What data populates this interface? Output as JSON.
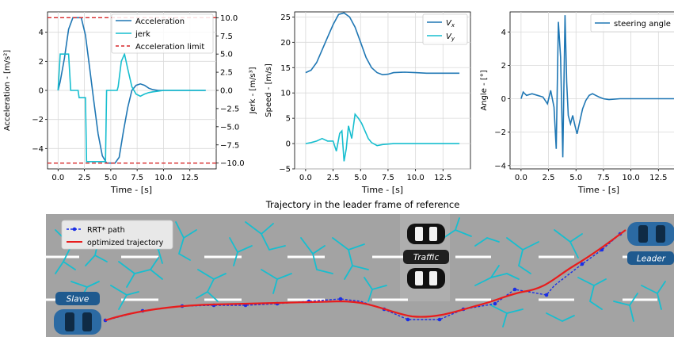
{
  "chart_data": [
    {
      "type": "line",
      "xlabel": "Time - [s]",
      "ylabel": "Acceleration - [m/s²]",
      "ylabel_right": "Jerk - [m/s³]",
      "xlim": [
        -1,
        15
      ],
      "ylim": [
        -5.4,
        5.4
      ],
      "ylim_right": [
        -10.8,
        10.8
      ],
      "xticks": [
        0,
        2.5,
        5,
        7.5,
        10,
        12.5
      ],
      "xtick_labels": [
        "0.0",
        "2.5",
        "5.0",
        "7.5",
        "10.0",
        "12.5"
      ],
      "yticks": [
        -4,
        -2,
        0,
        2,
        4
      ],
      "ytick_labels": [
        "−4",
        "−2",
        "0",
        "2",
        "4"
      ],
      "yticks_right": [
        -10,
        -7.5,
        -5,
        -2.5,
        0,
        2.5,
        5,
        7.5,
        10
      ],
      "ytick_labels_right": [
        "−10.0",
        "−7.5",
        "−5.0",
        "−2.5",
        "0.0",
        "2.5",
        "5.0",
        "7.5",
        "10.0"
      ],
      "grid": true,
      "legend_position": "top-right",
      "series": [
        {
          "name": "Acceleration",
          "axis": "left",
          "color": "#1f77b4",
          "x": [
            0,
            0.2,
            0.6,
            1.0,
            1.4,
            1.8,
            2.2,
            2.6,
            3.0,
            3.4,
            3.8,
            4.2,
            4.6,
            5.0,
            5.4,
            5.8,
            6.2,
            6.6,
            7.0,
            7.4,
            7.8,
            8.2,
            8.6,
            9.0,
            9.5,
            10.0,
            11.0,
            12.0,
            13.0,
            14.0
          ],
          "y": [
            0,
            0.6,
            2.2,
            4.2,
            5.0,
            5.0,
            5.0,
            3.8,
            1.5,
            -0.8,
            -3.0,
            -4.5,
            -5.0,
            -5.0,
            -5.0,
            -4.6,
            -2.8,
            -1.2,
            0.0,
            0.35,
            0.45,
            0.35,
            0.15,
            0.05,
            0.0,
            0.0,
            0.0,
            0.0,
            0.0,
            0.0
          ]
        },
        {
          "name": "jerk",
          "axis": "right",
          "color": "#17becf",
          "x": [
            0,
            0.2,
            0.35,
            1.0,
            1.2,
            1.9,
            2.0,
            2.6,
            2.7,
            4.5,
            4.6,
            5.6,
            5.7,
            6.0,
            6.3,
            6.6,
            7.0,
            7.4,
            7.8,
            8.2,
            8.6,
            9.0,
            9.5,
            10.0,
            11.0,
            12.0,
            13.0,
            14.0
          ],
          "y": [
            0,
            5.0,
            5.0,
            5.0,
            0.0,
            0.0,
            -1.0,
            -1.0,
            -9.8,
            -9.8,
            0.0,
            0.0,
            0.5,
            4.0,
            5.0,
            3.0,
            0.5,
            -0.5,
            -0.8,
            -0.5,
            -0.3,
            -0.2,
            -0.1,
            0.0,
            0.0,
            0.0,
            0.0,
            0.0
          ]
        },
        {
          "name": "Acceleration limit",
          "axis": "left",
          "color": "#d62728",
          "style": "dashed",
          "x": [
            -1,
            15
          ],
          "y": [
            5.0,
            5.0
          ]
        },
        {
          "name": "",
          "axis": "left",
          "color": "#d62728",
          "style": "dashed",
          "x": [
            -1,
            15
          ],
          "y": [
            -5.0,
            -5.0
          ]
        }
      ]
    },
    {
      "type": "line",
      "xlabel": "Time - [s]",
      "ylabel": "Speed - [m/s]",
      "xlim": [
        -1,
        15
      ],
      "ylim": [
        -5,
        26
      ],
      "xticks": [
        0,
        2.5,
        5,
        7.5,
        10,
        12.5
      ],
      "xtick_labels": [
        "0.0",
        "2.5",
        "5.0",
        "7.5",
        "10.0",
        "12.5"
      ],
      "yticks": [
        -5,
        0,
        5,
        10,
        15,
        20,
        25
      ],
      "ytick_labels": [
        "−5",
        "0",
        "5",
        "10",
        "15",
        "20",
        "25"
      ],
      "grid": true,
      "legend_position": "top-right",
      "series": [
        {
          "name": "Vx",
          "color": "#1f77b4",
          "x": [
            0,
            0.5,
            1.0,
            1.5,
            2.0,
            2.5,
            3.0,
            3.5,
            4.0,
            4.5,
            5.0,
            5.5,
            6.0,
            6.5,
            7.0,
            7.5,
            8.0,
            9.0,
            10.0,
            11.0,
            12.0,
            13.0,
            14.0
          ],
          "y": [
            14.0,
            14.5,
            16.0,
            18.5,
            21.0,
            23.5,
            25.5,
            25.8,
            25.0,
            23.0,
            20.0,
            17.0,
            15.0,
            14.0,
            13.6,
            13.7,
            14.0,
            14.1,
            14.0,
            13.9,
            13.9,
            13.9,
            13.9
          ]
        },
        {
          "name": "Vy",
          "color": "#17becf",
          "x": [
            0,
            0.5,
            1.0,
            1.5,
            2.0,
            2.5,
            2.8,
            3.1,
            3.3,
            3.5,
            3.7,
            3.9,
            4.2,
            4.5,
            4.8,
            5.1,
            5.4,
            5.7,
            6.0,
            6.5,
            7.0,
            8.0,
            9.0,
            10.0,
            11.0,
            12.0,
            13.0,
            14.0
          ],
          "y": [
            0.0,
            0.2,
            0.5,
            1.0,
            0.5,
            0.5,
            -1.5,
            2.0,
            2.5,
            -3.5,
            -1.0,
            3.5,
            1.0,
            5.8,
            5.0,
            4.0,
            2.5,
            1.0,
            0.2,
            -0.4,
            -0.2,
            0.0,
            0.0,
            0.0,
            0.0,
            0.0,
            0.0,
            0.0
          ]
        }
      ]
    },
    {
      "type": "line",
      "xlabel": "Time - [s]",
      "ylabel": "Angle - [°]",
      "xlim": [
        -1,
        15
      ],
      "ylim": [
        -4.2,
        5.2
      ],
      "xticks": [
        0,
        2.5,
        5,
        7.5,
        10,
        12.5
      ],
      "xtick_labels": [
        "0.0",
        "2.5",
        "5.0",
        "7.5",
        "10.0",
        "12.5"
      ],
      "yticks": [
        -4,
        -2,
        0,
        2,
        4
      ],
      "ytick_labels": [
        "−4",
        "−2",
        "0",
        "2",
        "4"
      ],
      "grid": true,
      "legend_position": "top-right",
      "series": [
        {
          "name": "steering angle",
          "color": "#1f77b4",
          "x": [
            0,
            0.2,
            0.5,
            1.0,
            1.5,
            2.0,
            2.4,
            2.7,
            3.0,
            3.2,
            3.4,
            3.6,
            3.8,
            4.0,
            4.15,
            4.3,
            4.5,
            4.7,
            4.9,
            5.1,
            5.3,
            5.6,
            5.9,
            6.2,
            6.5,
            6.8,
            7.1,
            7.5,
            8.0,
            9.0,
            10.0,
            11.0,
            12.0,
            13.0,
            14.0
          ],
          "y": [
            0.0,
            0.4,
            0.2,
            0.3,
            0.2,
            0.1,
            -0.3,
            0.5,
            -0.5,
            -3.0,
            4.6,
            2.5,
            -3.5,
            5.0,
            1.0,
            -1.0,
            -1.5,
            -1.0,
            -1.6,
            -2.1,
            -1.5,
            -0.6,
            -0.1,
            0.2,
            0.3,
            0.2,
            0.1,
            0.0,
            -0.05,
            0.0,
            0.0,
            0.0,
            0.0,
            0.0,
            0.0
          ]
        }
      ]
    }
  ],
  "trajectory": {
    "title": "Trajectory in the leader frame of reference",
    "legend": {
      "rrt": "RRT* path",
      "optimized": "optimized trajectory"
    },
    "labels": {
      "slave": "Slave",
      "traffic": "Traffic",
      "leader": "Leader"
    },
    "colors": {
      "road": "#a3a3a3",
      "tree": "#17becf",
      "rrt": "#1a2ee6",
      "optimized": "#e81c1c",
      "car_blue": "#2b6aa3",
      "car_black": "#111111",
      "label_bg": "#1f5a8f"
    }
  }
}
